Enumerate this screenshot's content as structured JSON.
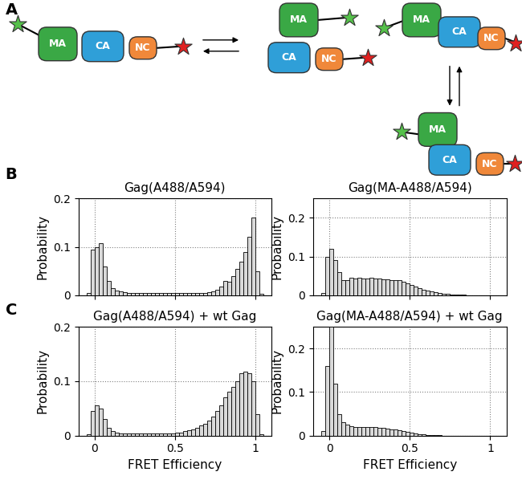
{
  "panel_labels": [
    "A",
    "B",
    "C"
  ],
  "diagram": {
    "domains": [
      "MA",
      "CA",
      "NC"
    ]
  },
  "chart_data": [
    {
      "type": "histogram",
      "title": "Gag(A488/A594)",
      "y_label": "Probability",
      "bins": [
        -0.05,
        -0.025,
        0,
        0.025,
        0.05,
        0.075,
        0.1,
        0.125,
        0.15,
        0.175,
        0.2,
        0.225,
        0.25,
        0.275,
        0.3,
        0.325,
        0.35,
        0.375,
        0.4,
        0.425,
        0.45,
        0.475,
        0.5,
        0.525,
        0.55,
        0.575,
        0.6,
        0.625,
        0.65,
        0.675,
        0.7,
        0.725,
        0.75,
        0.775,
        0.8,
        0.825,
        0.85,
        0.875,
        0.9,
        0.925,
        0.95,
        0.975,
        1,
        1.025,
        1.05
      ],
      "values": [
        0.005,
        0.095,
        0.1,
        0.107,
        0.06,
        0.03,
        0.015,
        0.01,
        0.008,
        0.006,
        0.004,
        0.004,
        0.004,
        0.004,
        0.004,
        0.004,
        0.004,
        0.004,
        0.004,
        0.004,
        0.004,
        0.004,
        0.004,
        0.004,
        0.004,
        0.004,
        0.004,
        0.004,
        0.004,
        0.004,
        0.006,
        0.008,
        0.012,
        0.018,
        0.03,
        0.028,
        0.04,
        0.055,
        0.07,
        0.09,
        0.12,
        0.16,
        0.05,
        0.003
      ],
      "color": "#d9d9d9",
      "xlim": [
        -0.1,
        1.1
      ],
      "xticks": [
        0,
        0.5,
        1
      ],
      "ylim": [
        0,
        0.2
      ],
      "yticks": [
        0,
        0.1,
        0.2
      ],
      "grid": true,
      "tick_labels": "y"
    },
    {
      "type": "histogram",
      "title": "Gag(MA-A488/A594)",
      "y_label": "Probability",
      "bins": [
        -0.05,
        -0.025,
        0,
        0.025,
        0.05,
        0.075,
        0.1,
        0.125,
        0.15,
        0.175,
        0.2,
        0.225,
        0.25,
        0.275,
        0.3,
        0.325,
        0.35,
        0.375,
        0.4,
        0.425,
        0.45,
        0.475,
        0.5,
        0.525,
        0.55,
        0.575,
        0.6,
        0.625,
        0.65,
        0.675,
        0.7,
        0.725,
        0.75,
        0.775,
        0.8,
        0.825,
        0.85,
        0.875,
        0.9,
        0.925,
        0.95,
        0.975,
        1,
        1.025,
        1.05
      ],
      "values": [
        0.005,
        0.1,
        0.12,
        0.09,
        0.06,
        0.04,
        0.04,
        0.045,
        0.044,
        0.045,
        0.044,
        0.043,
        0.045,
        0.044,
        0.043,
        0.042,
        0.042,
        0.04,
        0.04,
        0.038,
        0.035,
        0.03,
        0.027,
        0.022,
        0.018,
        0.015,
        0.012,
        0.01,
        0.008,
        0.006,
        0.004,
        0.003,
        0.002,
        0.002,
        0.001,
        0.001,
        0,
        0,
        0,
        0,
        0,
        0,
        0,
        0
      ],
      "color": "#d9d9d9",
      "xlim": [
        -0.1,
        1.1
      ],
      "xticks": [
        0,
        0.5,
        1
      ],
      "ylim": [
        0,
        0.25
      ],
      "yticks": [
        0,
        0.1,
        0.2
      ],
      "grid": true,
      "tick_labels": "y"
    },
    {
      "type": "histogram",
      "title": "Gag(A488/A594) + wt Gag",
      "x_label": "FRET Efficiency",
      "y_label": "Probability",
      "bins": [
        -0.05,
        -0.025,
        0,
        0.025,
        0.05,
        0.075,
        0.1,
        0.125,
        0.15,
        0.175,
        0.2,
        0.225,
        0.25,
        0.275,
        0.3,
        0.325,
        0.35,
        0.375,
        0.4,
        0.425,
        0.45,
        0.475,
        0.5,
        0.525,
        0.55,
        0.575,
        0.6,
        0.625,
        0.65,
        0.675,
        0.7,
        0.725,
        0.75,
        0.775,
        0.8,
        0.825,
        0.85,
        0.875,
        0.9,
        0.925,
        0.95,
        0.975,
        1,
        1.025,
        1.05
      ],
      "values": [
        0.003,
        0.045,
        0.055,
        0.05,
        0.03,
        0.015,
        0.008,
        0.005,
        0.004,
        0.004,
        0.004,
        0.004,
        0.004,
        0.004,
        0.004,
        0.004,
        0.004,
        0.004,
        0.004,
        0.004,
        0.004,
        0.004,
        0.005,
        0.006,
        0.008,
        0.01,
        0.012,
        0.015,
        0.018,
        0.022,
        0.028,
        0.035,
        0.045,
        0.055,
        0.07,
        0.08,
        0.09,
        0.1,
        0.115,
        0.118,
        0.115,
        0.1,
        0.04,
        0.003
      ],
      "color": "#d9d9d9",
      "xlim": [
        -0.1,
        1.1
      ],
      "xticks": [
        0,
        0.5,
        1
      ],
      "ylim": [
        0,
        0.2
      ],
      "yticks": [
        0,
        0.1,
        0.2
      ],
      "grid": true
    },
    {
      "type": "histogram",
      "title": "Gag(MA-A488/A594) + wt Gag",
      "x_label": "FRET Efficiency",
      "y_label": "Probability",
      "bins": [
        -0.05,
        -0.025,
        0,
        0.025,
        0.05,
        0.075,
        0.1,
        0.125,
        0.15,
        0.175,
        0.2,
        0.225,
        0.25,
        0.275,
        0.3,
        0.325,
        0.35,
        0.375,
        0.4,
        0.425,
        0.45,
        0.475,
        0.5,
        0.525,
        0.55,
        0.575,
        0.6,
        0.625,
        0.65,
        0.675,
        0.7,
        0.725,
        0.75,
        0.775,
        0.8,
        0.825,
        0.85,
        0.875,
        0.9,
        0.925,
        0.95,
        0.975,
        1,
        1.025,
        1.05
      ],
      "values": [
        0.01,
        0.16,
        0.25,
        0.12,
        0.05,
        0.03,
        0.025,
        0.022,
        0.02,
        0.02,
        0.02,
        0.02,
        0.019,
        0.019,
        0.018,
        0.017,
        0.016,
        0.015,
        0.014,
        0.012,
        0.01,
        0.008,
        0.006,
        0.005,
        0.004,
        0.003,
        0.002,
        0.002,
        0.001,
        0.001,
        0,
        0,
        0,
        0,
        0,
        0,
        0,
        0,
        0,
        0,
        0,
        0,
        0,
        0
      ],
      "color": "#d9d9d9",
      "xlim": [
        -0.1,
        1.1
      ],
      "xticks": [
        0,
        0.5,
        1
      ],
      "ylim": [
        0,
        0.25
      ],
      "yticks": [
        0,
        0.1,
        0.2
      ],
      "grid": true
    }
  ]
}
